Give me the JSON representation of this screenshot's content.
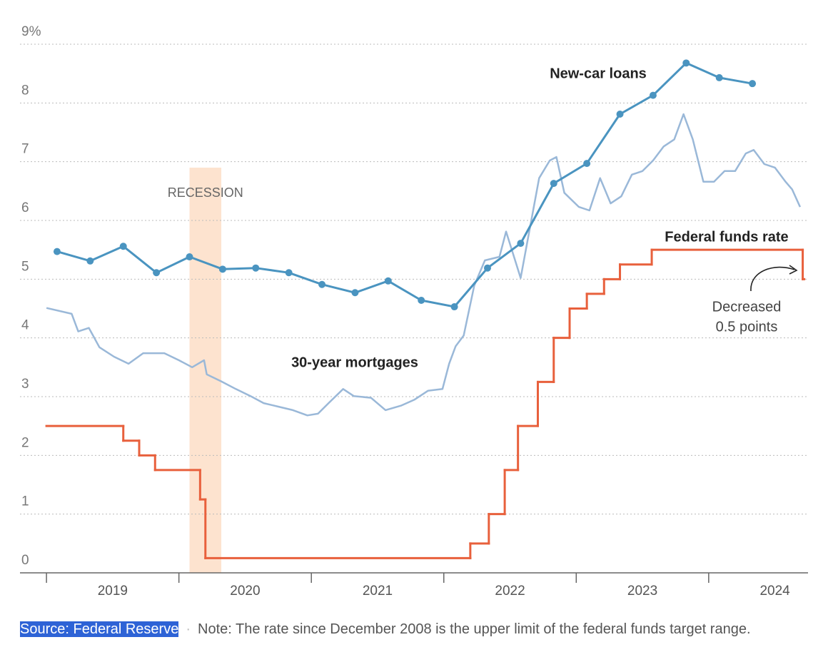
{
  "chart_data": {
    "type": "line",
    "xlim": [
      2018.8,
      2024.75
    ],
    "xticks": [
      2019,
      2020,
      2021,
      2022,
      2023,
      2024
    ],
    "ylim": [
      0,
      9
    ],
    "yticks": [
      0,
      1,
      2,
      3,
      4,
      5,
      6,
      7,
      8,
      {
        "value": 9,
        "label": "9%"
      }
    ],
    "grid": true,
    "recession": {
      "label": "RECESSION",
      "start": 2020.08,
      "end": 2020.32,
      "color": "#fde3cf"
    },
    "series": [
      {
        "name": "New-car loans",
        "color": "#4a94c0",
        "markers": true,
        "x": [
          2019.08,
          2019.33,
          2019.58,
          2019.83,
          2020.08,
          2020.33,
          2020.58,
          2020.83,
          2021.08,
          2021.33,
          2021.58,
          2021.83,
          2022.08,
          2022.33,
          2022.58,
          2022.83,
          2023.08,
          2023.33,
          2023.58,
          2023.83,
          2024.08,
          2024.33
        ],
        "values": [
          5.47,
          5.31,
          5.56,
          5.11,
          5.38,
          5.17,
          5.19,
          5.11,
          4.91,
          4.77,
          4.97,
          4.64,
          4.53,
          5.19,
          5.61,
          6.63,
          6.97,
          7.81,
          8.13,
          8.68,
          8.43,
          8.33
        ]
      },
      {
        "name": "30-year mortgages",
        "color": "#9ab8d8",
        "markers": false,
        "x": [
          2019.0,
          2019.19,
          2019.24,
          2019.32,
          2019.4,
          2019.51,
          2019.62,
          2019.73,
          2019.89,
          2020.0,
          2020.1,
          2020.19,
          2020.21,
          2020.32,
          2020.43,
          2020.54,
          2020.64,
          2020.75,
          2020.86,
          2020.97,
          2021.05,
          2021.13,
          2021.24,
          2021.32,
          2021.45,
          2021.56,
          2021.68,
          2021.78,
          2021.88,
          2021.99,
          2022.04,
          2022.09,
          2022.15,
          2022.23,
          2022.31,
          2022.42,
          2022.47,
          2022.53,
          2022.58,
          2022.64,
          2022.72,
          2022.8,
          2022.85,
          2022.91,
          2023.02,
          2023.1,
          2023.18,
          2023.26,
          2023.34,
          2023.42,
          2023.5,
          2023.58,
          2023.66,
          2023.74,
          2023.81,
          2023.88,
          2023.96,
          2024.04,
          2024.12,
          2024.2,
          2024.28,
          2024.34,
          2024.42,
          2024.5,
          2024.58,
          2024.63,
          2024.69
        ],
        "values": [
          4.51,
          4.41,
          4.11,
          4.17,
          3.84,
          3.68,
          3.56,
          3.74,
          3.74,
          3.62,
          3.5,
          3.62,
          3.38,
          3.26,
          3.13,
          3.01,
          2.89,
          2.83,
          2.77,
          2.68,
          2.71,
          2.89,
          3.13,
          3.01,
          2.98,
          2.77,
          2.85,
          2.95,
          3.1,
          3.13,
          3.56,
          3.86,
          4.04,
          4.89,
          5.32,
          5.38,
          5.81,
          5.38,
          5.02,
          5.75,
          6.72,
          7.02,
          7.08,
          6.47,
          6.23,
          6.17,
          6.72,
          6.29,
          6.41,
          6.78,
          6.84,
          7.02,
          7.26,
          7.38,
          7.81,
          7.38,
          6.66,
          6.66,
          6.84,
          6.84,
          7.14,
          7.2,
          6.96,
          6.9,
          6.66,
          6.53,
          6.23
        ]
      },
      {
        "name": "Federal funds rate",
        "color": "#e8603c",
        "markers": false,
        "step": "after",
        "x": [
          2019.0,
          2019.58,
          2019.7,
          2019.82,
          2020.16,
          2020.2,
          2022.2,
          2022.34,
          2022.46,
          2022.56,
          2022.71,
          2022.83,
          2022.95,
          2023.08,
          2023.21,
          2023.33,
          2023.57,
          2024.71
        ],
        "values": [
          2.5,
          2.25,
          2.0,
          1.75,
          1.25,
          0.25,
          0.5,
          1.0,
          1.75,
          2.5,
          3.25,
          4.0,
          4.5,
          4.75,
          5.0,
          5.25,
          5.5,
          5.0
        ]
      }
    ],
    "annotation": [
      "Decreased",
      "0.5 points"
    ],
    "source": "Source: Federal Reserve",
    "separator": "·",
    "note": "Note: The rate since December 2008 is the upper limit of the federal funds target range."
  }
}
